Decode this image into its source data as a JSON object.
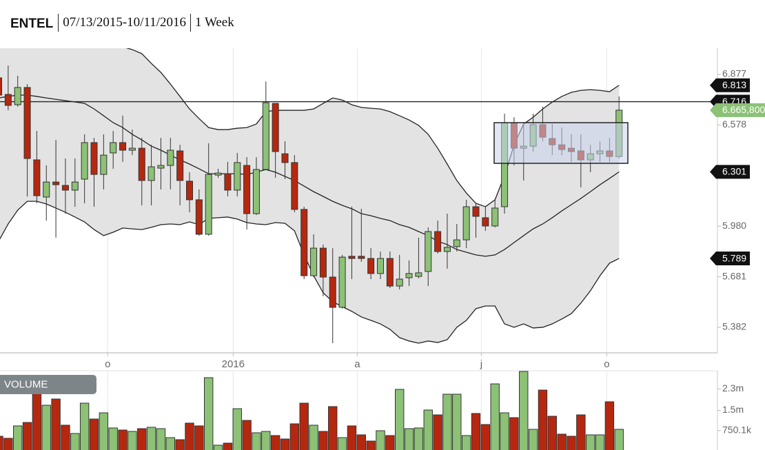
{
  "chart_data": {
    "type": "candlestick",
    "symbol": "ENTEL",
    "range": "07/13/2015-10/11/2016",
    "period": "1 Week",
    "up_color": "#8cc176",
    "down_color": "#b5280f",
    "ylim": [
      5.231,
      7.032
    ],
    "yticks": [
      5.382,
      5.681,
      {
        "value": 5.98,
        "label": "5.980"
      },
      6.578,
      6.877
    ],
    "xticks": [
      {
        "value": "2015-10",
        "label": "o"
      },
      {
        "value": "2016-01",
        "label": "2016"
      },
      {
        "value": "2016-04",
        "label": "a"
      },
      {
        "value": "2016-07",
        "label": "j"
      },
      {
        "value": "2016-10",
        "label": "o"
      }
    ],
    "grid": true,
    "open": [
      6.857,
      6.759,
      6.698,
      6.8,
      6.372,
      6.152,
      6.241,
      6.221,
      6.193,
      6.258,
      6.474,
      6.286,
      6.413,
      6.474,
      6.429,
      6.441,
      6.25,
      6.323,
      6.339,
      6.425,
      6.246,
      6.136,
      5.932,
      6.282,
      6.29,
      6.193,
      6.339,
      6.054,
      6.315,
      6.706,
      6.408,
      6.356,
      6.079,
      5.687,
      5.85,
      5.679,
      5.5,
      5.802,
      5.802,
      5.789,
      5.7,
      5.789,
      5.626,
      5.675,
      5.683,
      5.712,
      5.948,
      5.83,
      5.859,
      5.899,
      6.095,
      6.03,
      5.981,
      6.095,
      6.592,
      6.441,
      6.453,
      6.58,
      6.498,
      6.461,
      6.441,
      6.425,
      6.372,
      6.408,
      6.425,
      6.392
    ],
    "high": [
      6.91,
      6.93,
      6.869,
      6.82,
      6.543,
      6.339,
      6.49,
      6.38,
      6.38,
      6.523,
      6.502,
      6.523,
      6.543,
      6.633,
      6.551,
      6.502,
      6.461,
      6.502,
      6.502,
      6.461,
      6.299,
      6.197,
      6.47,
      6.319,
      6.36,
      6.413,
      6.388,
      6.388,
      6.836,
      6.706,
      6.482,
      6.4,
      6.095,
      5.932,
      5.871,
      5.85,
      5.81,
      6.095,
      6.083,
      5.85,
      5.83,
      5.83,
      5.81,
      5.777,
      5.912,
      5.973,
      6.013,
      6.054,
      5.993,
      6.136,
      6.115,
      6.095,
      6.136,
      6.645,
      6.624,
      6.592,
      6.645,
      6.686,
      6.584,
      6.563,
      6.523,
      6.523,
      6.461,
      6.482,
      6.502,
      6.747
    ],
    "low": [
      6.747,
      6.665,
      6.686,
      6.156,
      6.115,
      6.013,
      5.912,
      6.054,
      6.095,
      6.115,
      6.095,
      6.197,
      6.319,
      6.36,
      6.4,
      6.103,
      6.103,
      6.197,
      6.197,
      6.103,
      6.062,
      5.924,
      5.924,
      6.266,
      6.156,
      6.156,
      5.96,
      6.046,
      6.315,
      6.266,
      6.258,
      6.062,
      5.667,
      5.679,
      5.565,
      5.288,
      5.492,
      5.667,
      5.769,
      5.667,
      5.667,
      5.614,
      5.606,
      5.626,
      5.671,
      5.626,
      5.818,
      5.728,
      5.83,
      5.85,
      5.912,
      5.952,
      5.973,
      6.054,
      6.339,
      6.25,
      6.421,
      6.482,
      6.4,
      6.4,
      6.36,
      6.209,
      6.299,
      6.36,
      6.36,
      6.38
    ],
    "close": [
      6.755,
      6.694,
      6.8,
      6.38,
      6.16,
      6.241,
      6.225,
      6.193,
      6.241,
      6.474,
      6.286,
      6.4,
      6.474,
      6.429,
      6.441,
      6.25,
      6.331,
      6.339,
      6.429,
      6.25,
      6.136,
      5.932,
      6.286,
      6.294,
      6.193,
      6.356,
      6.054,
      6.315,
      6.71,
      6.421,
      6.356,
      6.079,
      5.687,
      5.85,
      5.679,
      5.5,
      5.797,
      5.789,
      5.789,
      5.7,
      5.789,
      5.626,
      5.667,
      5.7,
      5.704,
      5.948,
      5.83,
      5.855,
      5.899,
      6.095,
      6.038,
      5.981,
      6.087,
      6.592,
      6.441,
      6.453,
      6.58,
      6.506,
      6.461,
      6.433,
      6.421,
      6.372,
      6.408,
      6.425,
      6.392,
      6.6658
    ],
    "bands": {
      "shade": "#e3e3e3",
      "line_color": "#222222",
      "upper": [
        7.25,
        7.25,
        7.25,
        7.25,
        7.25,
        7.25,
        7.25,
        7.25,
        7.25,
        7.25,
        7.25,
        7.25,
        7.1,
        7.04,
        7.024,
        7.0,
        6.942,
        6.889,
        6.82,
        6.747,
        6.673,
        6.616,
        6.563,
        6.551,
        6.551,
        6.559,
        6.563,
        6.584,
        6.657,
        6.665,
        6.665,
        6.665,
        6.665,
        6.673,
        6.706,
        6.738,
        6.726,
        6.698,
        6.682,
        6.677,
        6.673,
        6.657,
        6.633,
        6.608,
        6.576,
        6.523,
        6.441,
        6.347,
        6.25,
        6.176,
        6.115,
        6.095,
        6.136,
        6.278,
        6.461,
        6.584,
        6.624,
        6.673,
        6.714,
        6.747,
        6.771,
        6.783,
        6.787,
        6.783,
        6.775,
        6.813
      ],
      "middle": [
        6.738,
        6.747,
        6.755,
        6.755,
        6.747,
        6.738,
        6.73,
        6.722,
        6.714,
        6.706,
        6.673,
        6.633,
        6.592,
        6.563,
        6.523,
        6.49,
        6.453,
        6.429,
        6.4,
        6.372,
        6.347,
        6.319,
        6.29,
        6.29,
        6.29,
        6.29,
        6.286,
        6.299,
        6.315,
        6.299,
        6.274,
        6.25,
        6.217,
        6.184,
        6.156,
        6.127,
        6.103,
        6.083,
        6.054,
        6.042,
        6.026,
        6.013,
        5.989,
        5.973,
        5.948,
        5.924,
        5.891,
        5.871,
        5.842,
        5.826,
        5.81,
        5.802,
        5.81,
        5.842,
        5.883,
        5.924,
        5.964,
        5.993,
        6.03,
        6.07,
        6.107,
        6.144,
        6.184,
        6.225,
        6.262,
        6.301
      ],
      "lower": [
        5.891,
        5.993,
        6.075,
        6.127,
        6.127,
        6.111,
        6.087,
        6.062,
        6.034,
        6.005,
        5.96,
        5.924,
        5.944,
        5.969,
        5.964,
        5.96,
        5.973,
        5.989,
        5.993,
        5.989,
        6.005,
        5.989,
        6.026,
        6.03,
        6.034,
        6.022,
        6.001,
        5.993,
        5.989,
        6.001,
        5.997,
        5.952,
        5.81,
        5.687,
        5.586,
        5.533,
        5.504,
        5.476,
        5.443,
        5.423,
        5.402,
        5.37,
        5.321,
        5.301,
        5.288,
        5.301,
        5.292,
        5.309,
        5.382,
        5.423,
        5.492,
        5.508,
        5.508,
        5.402,
        5.382,
        5.402,
        5.378,
        5.382,
        5.402,
        5.431,
        5.463,
        5.525,
        5.598,
        5.687,
        5.761,
        5.789
      ]
    },
    "flags": [
      {
        "value": 6.716,
        "color": "#111111",
        "line": true
      },
      {
        "value": 6.813,
        "color": "#111111"
      },
      {
        "value": 6.6658,
        "label": "6.665,800",
        "color": "#8cc176"
      },
      {
        "value": 6.301,
        "color": "#111111"
      },
      {
        "value": 5.789,
        "color": "#111111"
      }
    ],
    "volume": {
      "title": "VOLUME",
      "ylim": [
        0,
        2975000
      ],
      "yticks": [
        {
          "value": 2300000,
          "label": "2.3m"
        },
        {
          "value": 1500000,
          "label": "1.5m"
        },
        {
          "value": 750100,
          "label": "750.1k"
        }
      ],
      "values": [
        538000,
        462000,
        923000,
        1051000,
        2128000,
        1692000,
        1923000,
        949000,
        641000,
        1769000,
        1179000,
        1410000,
        846000,
        769000,
        718000,
        821000,
        872000,
        821000,
        487000,
        410000,
        1026000,
        923000,
        2718000,
        205000,
        282000,
        1564000,
        1128000,
        667000,
        718000,
        564000,
        436000,
        1000000,
        1769000,
        949000,
        718000,
        1641000,
        487000,
        923000,
        590000,
        359000,
        744000,
        564000,
        2282000,
        821000,
        846000,
        1513000,
        1333000,
        2103000,
        2103000,
        564000,
        1385000,
        974000,
        2487000,
        1410000,
        1231000,
        2950000,
        795000,
        2256000,
        1282000,
        615000,
        538000,
        1333000,
        590000,
        590000,
        1821000,
        795000
      ]
    }
  }
}
